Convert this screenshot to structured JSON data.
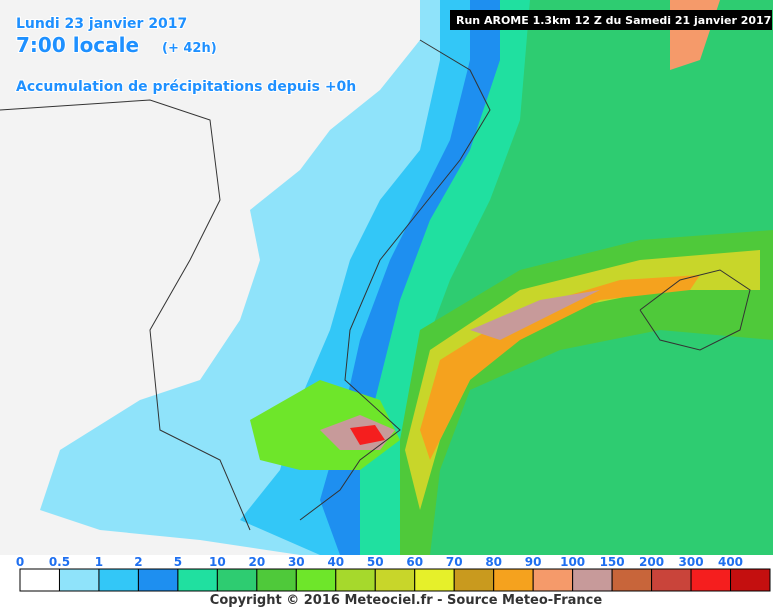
{
  "header": {
    "date": "Lundi 23 janvier 2017",
    "time": "7:00 locale",
    "lead": "(+ 42h)",
    "product": "Accumulation de précipitations depuis +0h",
    "run": "Run AROME 1.3km 12 Z du Samedi 21 janvier 2017"
  },
  "legend": {
    "labels": [
      "0",
      "0.5",
      "1",
      "2",
      "5",
      "10",
      "20",
      "30",
      "40",
      "50",
      "60",
      "70",
      "80",
      "90",
      "100",
      "150",
      "200",
      "300",
      "400"
    ],
    "colors": [
      "#ffffff",
      "#8fe3fa",
      "#33c7f7",
      "#1e8ff0",
      "#20e0a0",
      "#2ecc71",
      "#4fc93a",
      "#6ee62a",
      "#a6d92c",
      "#c8d62a",
      "#e6f02a",
      "#c99a1e",
      "#f5a21e",
      "#f59a6a",
      "#c79a9a",
      "#c8653a",
      "#c9443a",
      "#f51e1e",
      "#c40f0f"
    ]
  },
  "footer": {
    "copyright": "Copyright © 2016 Meteociel.fr - Source Meteo-France"
  }
}
